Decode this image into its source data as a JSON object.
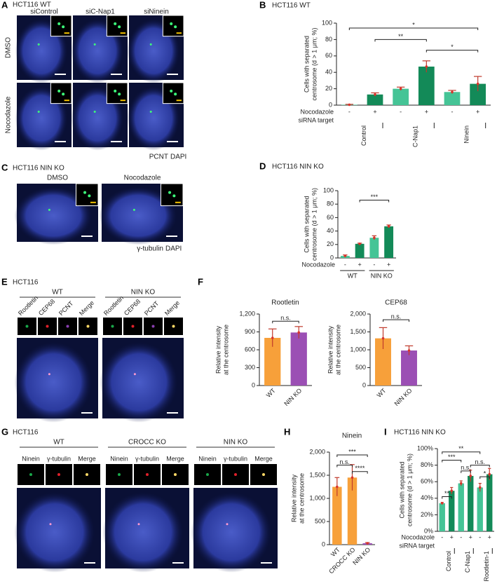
{
  "image_panels": {
    "A": {
      "letter": "A",
      "title": "HCT116 WT",
      "columns": [
        "siControl",
        "siC-Nap1",
        "siNinein"
      ],
      "rows": [
        "DMSO",
        "Nocodazole"
      ],
      "stain": [
        "PCNT",
        "DAPI"
      ]
    },
    "C": {
      "letter": "C",
      "title": "HCT116 NIN KO",
      "columns": [
        "DMSO",
        "Nocodazole"
      ],
      "stain": [
        "γ-tubulin",
        "DAPI"
      ]
    },
    "E": {
      "letter": "E",
      "title": "HCT116",
      "groups": [
        "WT",
        "NIN KO"
      ],
      "channels": [
        "Rootletin",
        "CEP68",
        "PCNT",
        "Merge"
      ]
    },
    "G": {
      "letter": "G",
      "title": "HCT116",
      "groups": [
        "WT",
        "CROCC KO",
        "NIN KO"
      ],
      "channels": [
        "Ninein",
        "γ-tubulin",
        "Merge"
      ]
    }
  },
  "chart_data": [
    {
      "type": "bar",
      "panel": "B",
      "title": "HCT116 WT",
      "ylabel": [
        "Cells with separated",
        "centrosome (d > 1 μm; %)"
      ],
      "ylim": [
        0,
        100
      ],
      "yticks": [
        0,
        20,
        40,
        60,
        80,
        100
      ],
      "row_labels": [
        "Nocodazole",
        "siRNA target"
      ],
      "categories": [
        "Control",
        "C-Nap1",
        "Ninein"
      ],
      "series": [
        {
          "name": "-",
          "color": "#45c496",
          "values": [
            0.5,
            20,
            16
          ],
          "errors": [
            0.5,
            2,
            2
          ]
        },
        {
          "name": "+",
          "color": "#138a58",
          "values": [
            13,
            47,
            26
          ],
          "errors": [
            2,
            7,
            9
          ]
        }
      ],
      "annotations": [
        "*",
        "**",
        "*"
      ]
    },
    {
      "type": "bar",
      "panel": "D",
      "title": "HCT116 NIN KO",
      "ylabel": [
        "Cells with separated",
        "centrosome (d > 1 μm; %)"
      ],
      "ylim": [
        0,
        100
      ],
      "yticks": [
        0,
        20,
        40,
        60,
        80,
        100
      ],
      "row_labels": [
        "Nocodazole"
      ],
      "categories": [
        "WT",
        "NIN KO"
      ],
      "series": [
        {
          "name": "-",
          "color": "#45c496",
          "values": [
            3,
            30
          ],
          "errors": [
            1.5,
            3
          ]
        },
        {
          "name": "+",
          "color": "#138a58",
          "values": [
            21,
            47
          ],
          "errors": [
            1,
            2
          ]
        }
      ],
      "annotations": [
        "***"
      ]
    },
    {
      "type": "bar",
      "panel": "F",
      "title": "Rootletin",
      "ylabel": [
        "Relative intensity",
        "at the centrosome"
      ],
      "ylim": [
        0,
        1200
      ],
      "yticks": [
        0,
        300,
        600,
        900,
        {
          "value": 1200,
          "label": "1,200"
        }
      ],
      "categories": [
        "WT",
        "NIN KO"
      ],
      "values": [
        800,
        890
      ],
      "errors": [
        150,
        100
      ],
      "colors": [
        "#f7a03a",
        "#9b4fb4"
      ],
      "annotations": [
        "n.s."
      ]
    },
    {
      "type": "bar",
      "title": "CEP68",
      "ylabel": [
        "Relative intensity",
        "at the centrosome"
      ],
      "ylim": [
        0,
        2000
      ],
      "yticks": [
        0,
        500,
        {
          "value": 1000,
          "label": "1,000"
        },
        {
          "value": 1500,
          "label": "1,500"
        },
        {
          "value": 2000,
          "label": "2,000"
        }
      ],
      "categories": [
        "WT",
        "NIN KO"
      ],
      "values": [
        1320,
        980
      ],
      "errors": [
        300,
        130
      ],
      "colors": [
        "#f7a03a",
        "#9b4fb4"
      ],
      "annotations": [
        "n.s."
      ]
    },
    {
      "type": "bar",
      "panel": "H",
      "title": "Ninein",
      "ylabel": [
        "Relative intensity",
        "at the centrosome"
      ],
      "ylim": [
        0,
        2000
      ],
      "yticks": [
        0,
        500,
        {
          "value": 1000,
          "label": "1,000"
        },
        {
          "value": 1500,
          "label": "1,500"
        },
        {
          "value": 2000,
          "label": "2,000"
        }
      ],
      "categories": [
        "WT",
        "CROCC KO",
        "NIN KO"
      ],
      "values": [
        1250,
        1450,
        30
      ],
      "errors": [
        200,
        280,
        15
      ],
      "colors": [
        "#f7a03a",
        "#f7a03a",
        "#9b4fb4"
      ],
      "annotations": [
        "***",
        "n.s.",
        "****"
      ]
    },
    {
      "type": "bar",
      "panel": "I",
      "title": "HCT116 NIN KO",
      "ylabel": [
        "Cells with separated",
        "centrosome (d > 1 μm; %)"
      ],
      "ylim": [
        0,
        100
      ],
      "yticks": [
        {
          "value": 0,
          "label": "0%"
        },
        {
          "value": 20,
          "label": "20%"
        },
        {
          "value": 40,
          "label": "40%"
        },
        {
          "value": 60,
          "label": "60%"
        },
        {
          "value": 80,
          "label": "80%"
        },
        {
          "value": 100,
          "label": "100%"
        }
      ],
      "row_labels": [
        "Nocodazole",
        "siRNA target"
      ],
      "categories": [
        "Control",
        "C-Nap1",
        "Rootletin-1"
      ],
      "series": [
        {
          "name": "-",
          "color": "#45c496",
          "values": [
            34,
            58,
            53
          ],
          "errors": [
            1,
            3,
            5
          ]
        },
        {
          "name": "+",
          "color": "#138a58",
          "values": [
            49,
            67,
            69
          ],
          "errors": [
            4,
            7,
            7
          ]
        }
      ],
      "annotations": [
        "**",
        "***",
        "**",
        "n.s.",
        "n.s.",
        "*"
      ]
    }
  ]
}
